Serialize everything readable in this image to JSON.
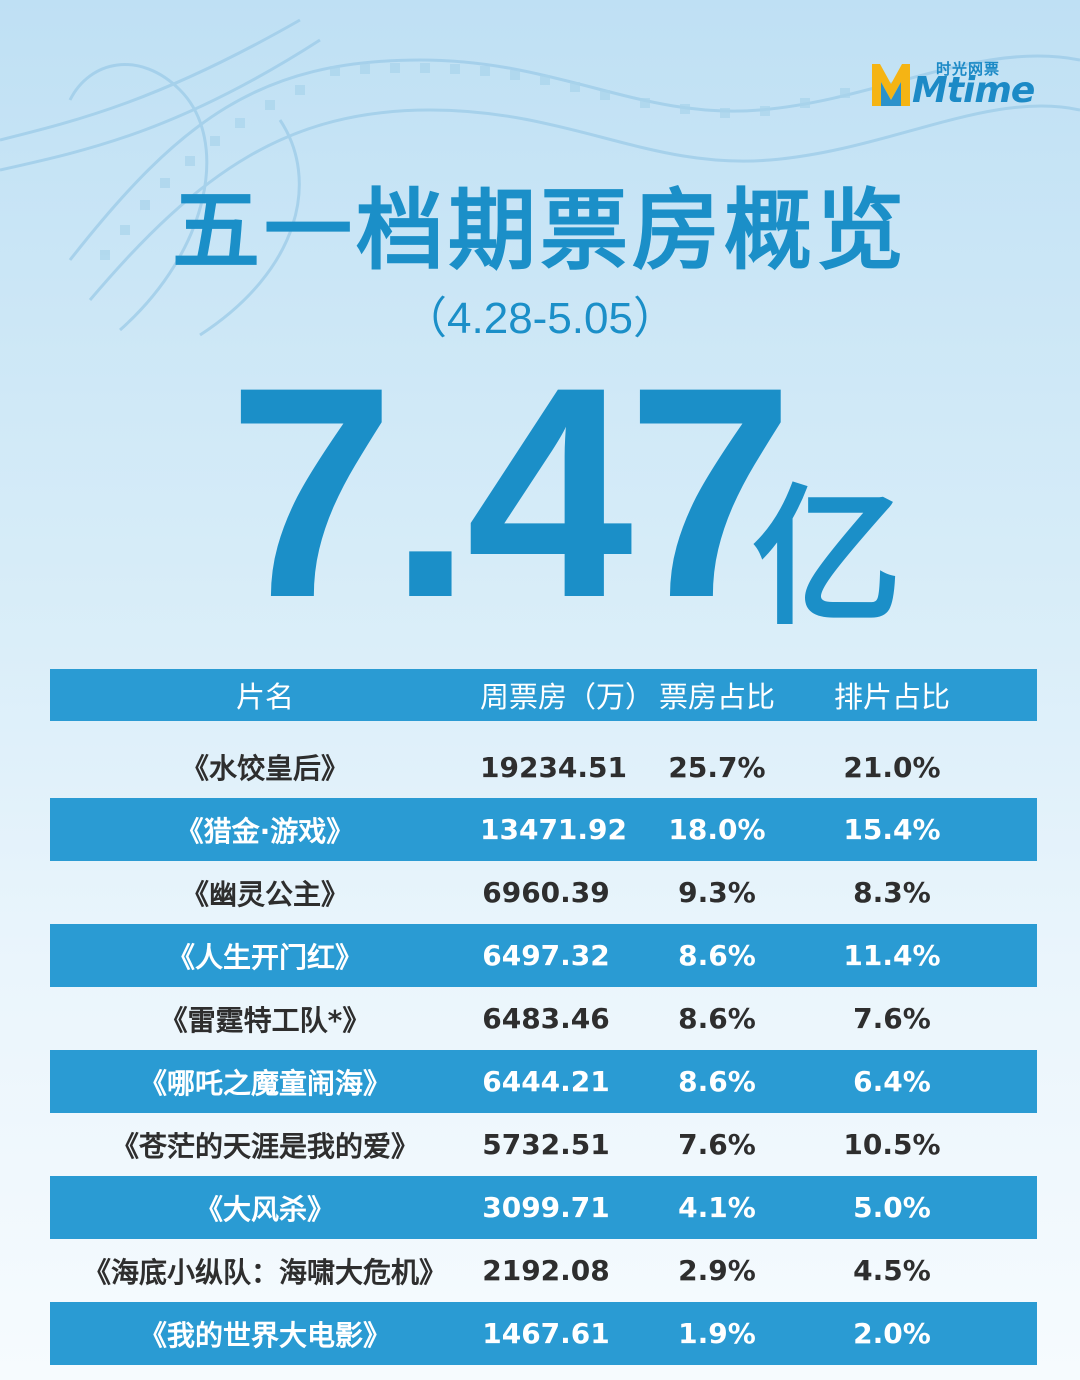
{
  "logo": {
    "chinese": "时光网票",
    "brand": "Mtime"
  },
  "title": "五一档期票房概览",
  "subtitle": "（4.28-5.05）",
  "total": {
    "value": "7.47",
    "unit": "亿"
  },
  "colors": {
    "accent": "#1b8fc8",
    "row_blue": "#2a9bd3",
    "background": "#d6ecf8"
  },
  "chart_data": {
    "type": "table",
    "title": "五一档期票房概览",
    "columns": [
      "片名",
      "周票房（万）",
      "票房占比",
      "排片占比"
    ],
    "rows": [
      [
        "《水饺皇后》",
        "19234.51",
        "25.7%",
        "21.0%"
      ],
      [
        "《猎金·游戏》",
        "13471.92",
        "18.0%",
        "15.4%"
      ],
      [
        "《幽灵公主》",
        "6960.39",
        "9.3%",
        "8.3%"
      ],
      [
        "《人生开门红》",
        "6497.32",
        "8.6%",
        "11.4%"
      ],
      [
        "《雷霆特工队*》",
        "6483.46",
        "8.6%",
        "7.6%"
      ],
      [
        "《哪吒之魔童闹海》",
        "6444.21",
        "8.6%",
        "6.4%"
      ],
      [
        "《苍茫的天涯是我的爱》",
        "5732.51",
        "7.6%",
        "10.5%"
      ],
      [
        "《大风杀》",
        "3099.71",
        "4.1%",
        "5.0%"
      ],
      [
        "《海底小纵队：海啸大危机》",
        "2192.08",
        "2.9%",
        "4.5%"
      ],
      [
        "《我的世界大电影》",
        "1467.61",
        "1.9%",
        "2.0%"
      ]
    ]
  }
}
